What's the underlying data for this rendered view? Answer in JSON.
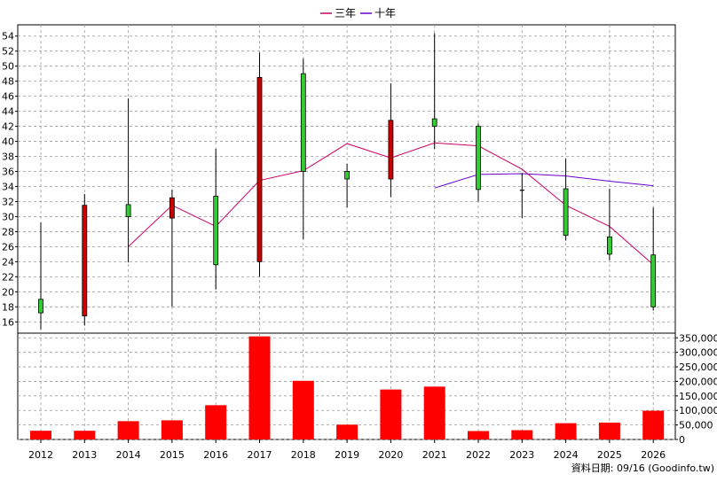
{
  "legend": [
    {
      "label": "三年",
      "color": "#cc0066"
    },
    {
      "label": "十年",
      "color": "#6600cc"
    }
  ],
  "footer": {
    "date_note": "資料日期: 09/16  (Goodinfo.tw)"
  },
  "chart_data": {
    "type": "candlestick",
    "x": [
      "2012",
      "2013",
      "2014",
      "2015",
      "2016",
      "2017",
      "2018",
      "2019",
      "2020",
      "2021",
      "2022",
      "2023",
      "2024",
      "2025",
      "2026"
    ],
    "ohlc": [
      {
        "open": 17.2,
        "high": 29.2,
        "low": 15.0,
        "close": 19.0
      },
      {
        "open": 31.5,
        "high": 33.0,
        "low": 15.5,
        "close": 16.8
      },
      {
        "open": 30.0,
        "high": 45.7,
        "low": 23.9,
        "close": 31.6
      },
      {
        "open": 32.5,
        "high": 33.6,
        "low": 18.0,
        "close": 29.8
      },
      {
        "open": 23.6,
        "high": 39.0,
        "low": 20.3,
        "close": 32.7
      },
      {
        "open": 48.5,
        "high": 51.8,
        "low": 22.0,
        "close": 24.0
      },
      {
        "open": 36.0,
        "high": 51.0,
        "low": 27.0,
        "close": 49.0
      },
      {
        "open": 35.0,
        "high": 37.0,
        "low": 31.2,
        "close": 36.0
      },
      {
        "open": 42.8,
        "high": 47.7,
        "low": 32.6,
        "close": 35.0
      },
      {
        "open": 42.0,
        "high": 54.4,
        "low": 39.0,
        "close": 43.0
      },
      {
        "open": 33.6,
        "high": 42.4,
        "low": 32.0,
        "close": 42.0
      },
      {
        "open": 33.5,
        "high": 35.8,
        "low": 29.8,
        "close": 33.5
      },
      {
        "open": 27.5,
        "high": 37.7,
        "low": 26.8,
        "close": 33.7
      },
      {
        "open": 25.0,
        "high": 33.7,
        "low": 24.2,
        "close": 27.3
      },
      {
        "open": 18.0,
        "high": 31.2,
        "low": 17.5,
        "close": 24.9
      }
    ],
    "up_color": "#33cc33",
    "down_color": "#cc0000",
    "ma_series": [
      {
        "name": "三年",
        "color": "#cc0066",
        "values": [
          null,
          null,
          26.0,
          31.5,
          28.7,
          34.8,
          36.1,
          39.7,
          37.8,
          39.8,
          39.4,
          36.3,
          31.5,
          28.7,
          23.6
        ]
      },
      {
        "name": "十年",
        "color": "#6600cc",
        "values": [
          null,
          null,
          null,
          null,
          null,
          null,
          null,
          null,
          null,
          33.8,
          35.6,
          35.7,
          35.4,
          34.7,
          34.1
        ]
      }
    ],
    "price_axis": {
      "ylim": [
        14.5,
        55.5
      ],
      "ticks": [
        16,
        18,
        20,
        22,
        24,
        26,
        28,
        30,
        32,
        34,
        36,
        38,
        40,
        42,
        44,
        46,
        48,
        50,
        52,
        54
      ]
    },
    "volume": {
      "values": [
        30000,
        30000,
        63000,
        66000,
        118000,
        355000,
        202000,
        51000,
        172000,
        182000,
        29000,
        32000,
        56000,
        58000,
        99000
      ],
      "color": "#ff0000",
      "ylim": [
        0,
        360000
      ],
      "ticks": [
        0,
        50000,
        100000,
        150000,
        200000,
        250000,
        300000,
        350000
      ],
      "tick_labels": [
        "0",
        "50,000",
        "100,000",
        "150,000",
        "200,000",
        "250,000",
        "300,000",
        "350,000"
      ]
    },
    "grid": true
  }
}
